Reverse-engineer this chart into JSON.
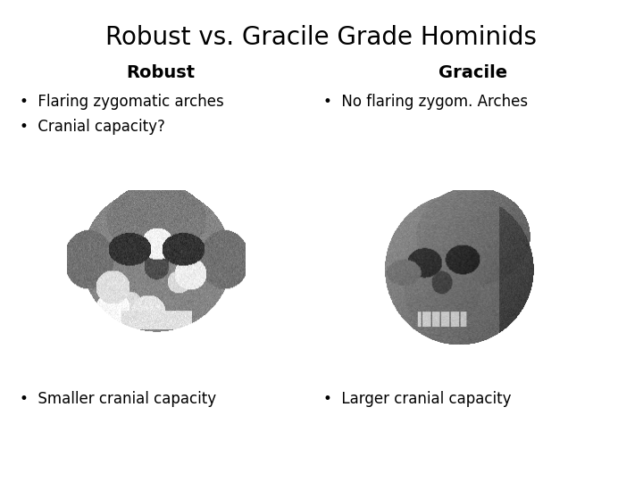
{
  "title": "Robust vs. Gracile Grade Hominids",
  "title_fontsize": 20,
  "col1_header": "Robust",
  "col2_header": "Gracile",
  "header_fontsize": 14,
  "bullet_fontsize": 12,
  "col1_bullets_top": [
    "Flaring zygomatic arches",
    "Cranial capacity?"
  ],
  "col2_bullets_top": [
    "No flaring zygom. Arches"
  ],
  "col1_bullets_bottom": [
    "Smaller cranial capacity"
  ],
  "col2_bullets_bottom": [
    "Larger cranial capacity"
  ],
  "background_color": "#ffffff",
  "text_color": "#000000",
  "bullet_char": "•"
}
